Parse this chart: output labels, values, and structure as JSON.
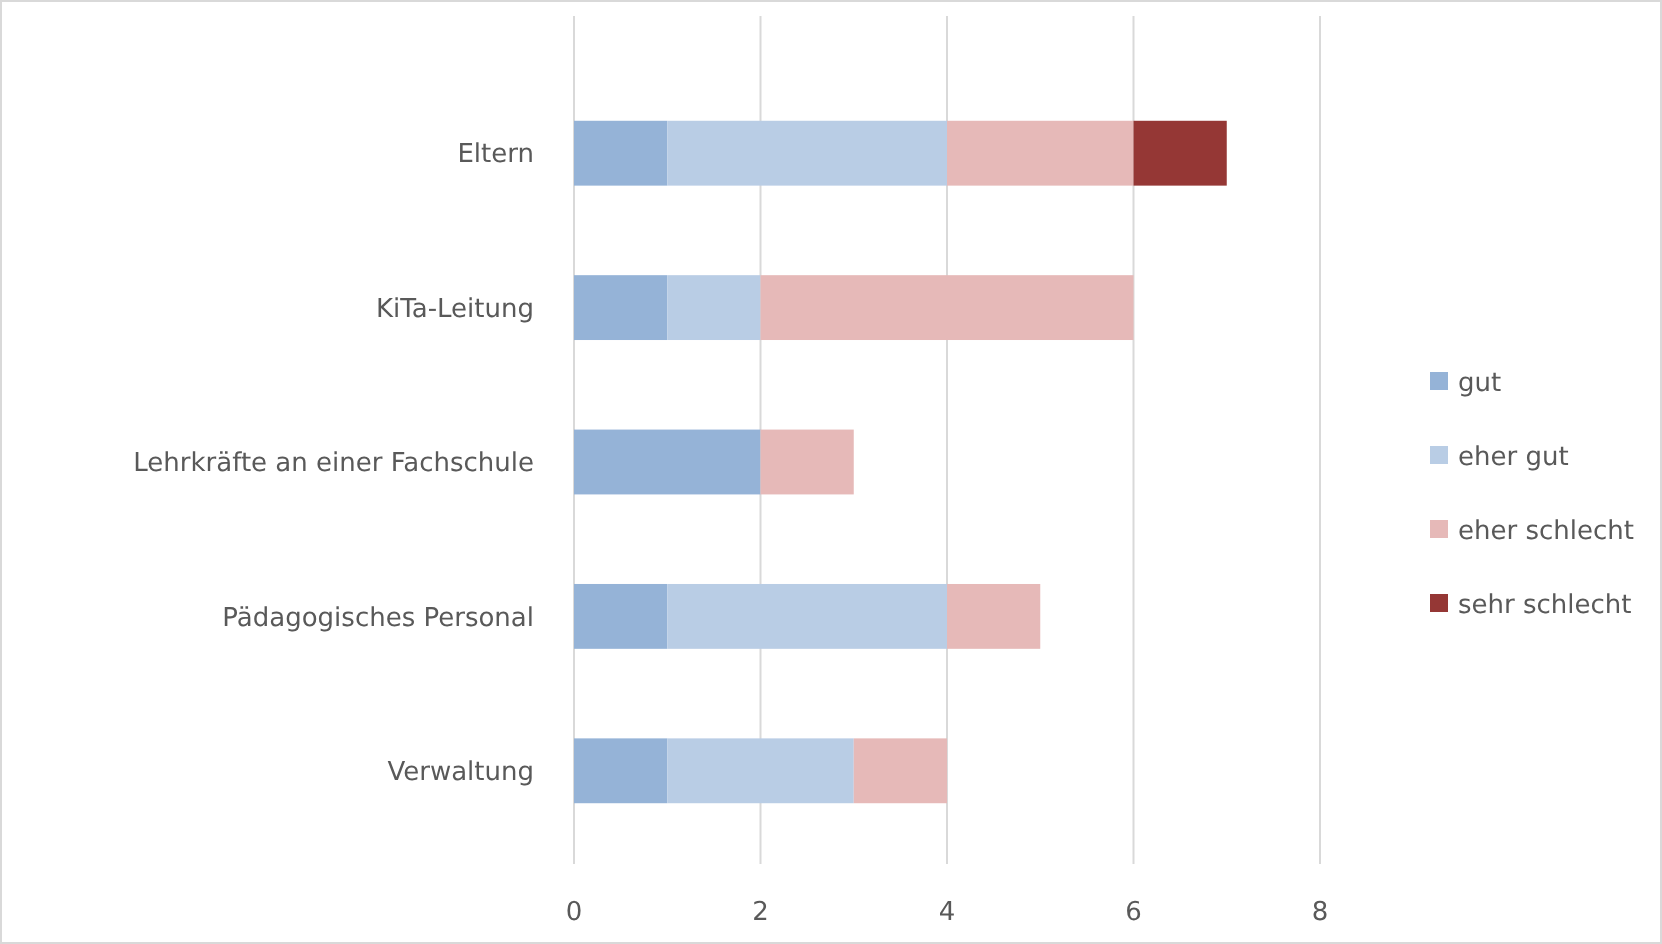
{
  "chart_data": {
    "type": "bar",
    "orientation": "horizontal",
    "stacked": true,
    "categories": [
      "Eltern",
      "KiTa-Leitung",
      "Lehrkräfte an einer Fachschule",
      "Pädagogisches Personal",
      "Verwaltung"
    ],
    "series": [
      {
        "name": "gut",
        "color": "#95b3d7",
        "values": [
          1,
          1,
          2,
          1,
          1
        ]
      },
      {
        "name": "eher gut",
        "color": "#b9cde5",
        "values": [
          3,
          1,
          0,
          3,
          2
        ]
      },
      {
        "name": "eher schlecht",
        "color": "#e6b9b8",
        "values": [
          2,
          4,
          1,
          1,
          1
        ]
      },
      {
        "name": "sehr schlecht",
        "color": "#953735",
        "values": [
          1,
          0,
          0,
          0,
          0
        ]
      }
    ],
    "xlim": [
      0,
      8
    ],
    "xticks": [
      0,
      2,
      4,
      6,
      8
    ],
    "grid": "x",
    "legend": "right"
  }
}
